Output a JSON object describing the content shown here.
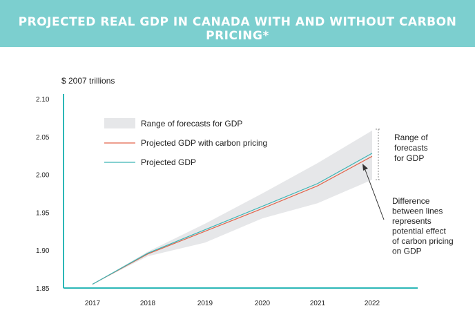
{
  "header": {
    "title": "PROJECTED REAL GDP IN CANADA WITH AND WITHOUT CARBON PRICING*"
  },
  "colors": {
    "banner": "#7ccfcf",
    "axis": "#2bb7b7",
    "teal": "#3ab5b5",
    "red": "#e2654b",
    "band": "#e6e7e9"
  },
  "chart_data": {
    "type": "line",
    "title": "PROJECTED REAL GDP IN CANADA WITH AND WITHOUT CARBON PRICING*",
    "ylabel": "$ 2007 trillions",
    "xlabel": "",
    "ylim": [
      1.85,
      2.1
    ],
    "yticks": [
      "2.10",
      "2.05",
      "2.00",
      "1.95",
      "1.90",
      "1.85"
    ],
    "x": [
      "2017",
      "2018",
      "2019",
      "2020",
      "2021",
      "2022"
    ],
    "series": [
      {
        "name": "Projected GDP with carbon pricing",
        "values": [
          1.855,
          1.895,
          1.925,
          1.955,
          1.985,
          2.024
        ],
        "color": "#e2654b"
      },
      {
        "name": "Projected GDP",
        "values": [
          1.855,
          1.896,
          1.927,
          1.958,
          1.988,
          2.028
        ],
        "color": "#3ab5b5"
      }
    ],
    "range": {
      "name": "Range of forecasts for GDP",
      "upper": [
        1.855,
        1.898,
        1.935,
        1.975,
        2.015,
        2.058
      ],
      "lower": [
        1.855,
        1.892,
        1.91,
        1.942,
        1.962,
        1.993
      ]
    },
    "legend": [
      {
        "label": "Range of forecasts for GDP",
        "kind": "band"
      },
      {
        "label": "Projected GDP with carbon pricing",
        "kind": "red"
      },
      {
        "label": "Projected GDP",
        "kind": "teal"
      }
    ],
    "annotations": {
      "range_label": [
        "Range of",
        "forecasts",
        "for GDP"
      ],
      "difference_label": [
        "Difference",
        "between lines",
        "represents",
        "potential effect",
        "of carbon pricing",
        "on GDP"
      ]
    }
  }
}
